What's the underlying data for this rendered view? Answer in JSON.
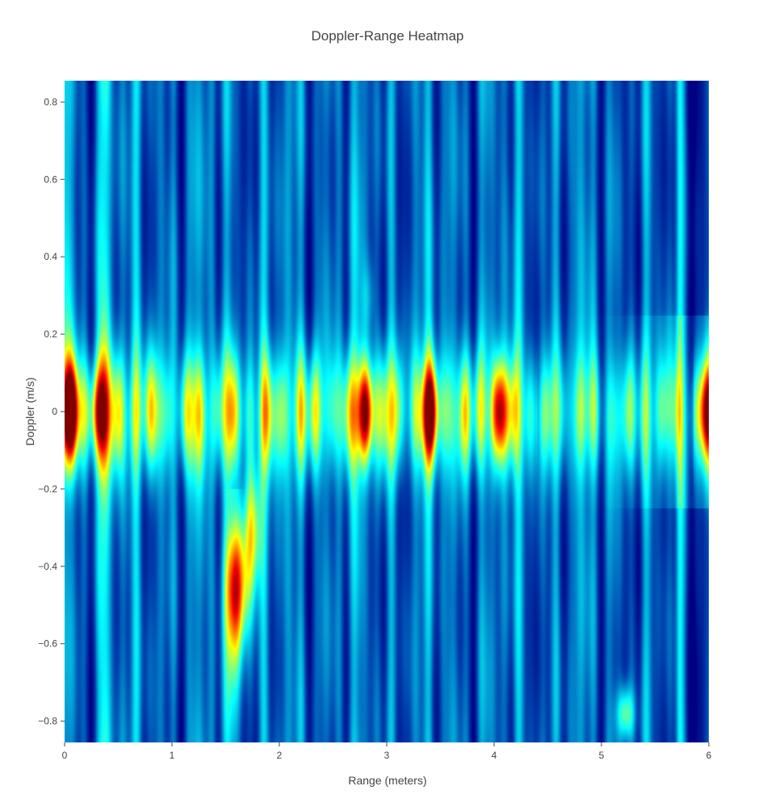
{
  "chart_data": {
    "type": "heatmap",
    "title": "Doppler-Range Heatmap",
    "xlabel": "Range (meters)",
    "ylabel": "Doppler (m/s)",
    "xlim": [
      0,
      6
    ],
    "ylim": [
      -0.855,
      0.855
    ],
    "x_ticks": [
      0,
      1,
      2,
      3,
      4,
      5,
      6
    ],
    "y_ticks": [
      -0.8,
      -0.6,
      -0.4,
      -0.2,
      0,
      0.2,
      0.4,
      0.6,
      0.8
    ],
    "colorscale": "Jet",
    "colors": {
      "low": "#00007f",
      "mid_low": "#0050c8",
      "mid": "#00e6ff",
      "mid_high": "#ffff00",
      "high": "#ff0000",
      "max": "#800000"
    },
    "grid": false,
    "legend": "none",
    "hotspots": [
      {
        "range": 0.05,
        "doppler": 0.0,
        "intensity": 1.0
      },
      {
        "range": 0.3,
        "doppler": 0.0,
        "intensity": 0.8
      },
      {
        "range": 1.6,
        "doppler": -0.45,
        "intensity": 0.95
      },
      {
        "range": 1.75,
        "doppler": -0.3,
        "intensity": 0.75
      },
      {
        "range": 2.8,
        "doppler": 0.0,
        "intensity": 0.92
      },
      {
        "range": 3.4,
        "doppler": 0.0,
        "intensity": 0.8
      },
      {
        "range": 4.05,
        "doppler": 0.0,
        "intensity": 0.7
      },
      {
        "range": 5.22,
        "doppler": -0.78,
        "intensity": 0.6
      },
      {
        "range": 5.98,
        "doppler": 0.0,
        "intensity": 0.7
      }
    ]
  }
}
